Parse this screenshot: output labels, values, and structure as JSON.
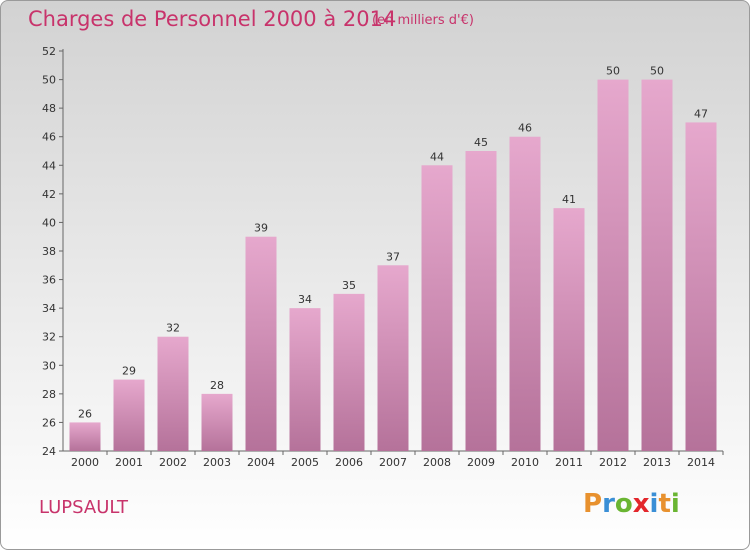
{
  "header": {
    "title": "Charges de Personnel 2000 à 2014",
    "unit": "(en milliers d'€)"
  },
  "footer": {
    "commune": "LUPSAULT",
    "logo_letters": [
      "P",
      "r",
      "o",
      "x",
      "i",
      "t",
      "i"
    ],
    "logo_colors": [
      "#e8912e",
      "#3a8fd6",
      "#6ab532",
      "#e3262b",
      "#3a8fd6",
      "#e8912e",
      "#6ab532"
    ]
  },
  "colors": {
    "accent": "#c8336b",
    "bar_top": "#e6a8cd",
    "bar_bottom": "#b5729a"
  },
  "chart_data": {
    "type": "bar",
    "categories": [
      "2000",
      "2001",
      "2002",
      "2003",
      "2004",
      "2005",
      "2006",
      "2007",
      "2008",
      "2009",
      "2010",
      "2011",
      "2012",
      "2013",
      "2014"
    ],
    "values": [
      26,
      29,
      32,
      28,
      39,
      34,
      35,
      37,
      44,
      45,
      46,
      41,
      50,
      50,
      47
    ],
    "title": "Charges de Personnel 2000 à 2014",
    "subtitle": "(en milliers d'€)",
    "xlabel": "",
    "ylabel": "",
    "ylim": [
      24,
      52
    ],
    "yticks": [
      24,
      26,
      28,
      30,
      32,
      34,
      36,
      38,
      40,
      42,
      44,
      46,
      48,
      50,
      52
    ],
    "grid": false,
    "legend": "none"
  }
}
